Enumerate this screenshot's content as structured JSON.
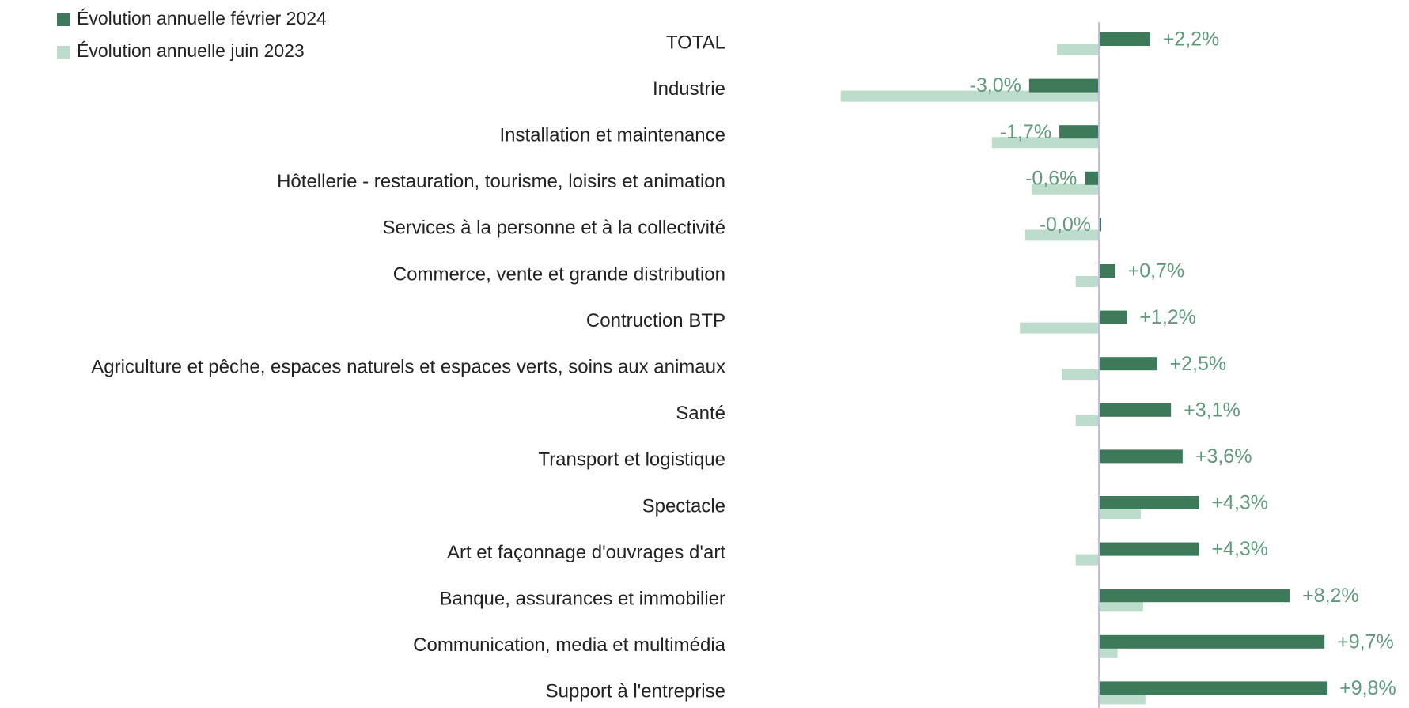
{
  "chart_data": {
    "type": "hbar",
    "categories": [
      "TOTAL",
      "Industrie",
      "Installation et maintenance",
      "Hôtellerie - restauration, tourisme, loisirs et animation",
      "Services à la personne et à la collectivité",
      "Commerce, vente et grande distribution",
      "Contruction BTP",
      "Agriculture et pêche, espaces naturels et espaces verts, soins aux animaux",
      "Santé",
      "Transport et logistique",
      "Spectacle",
      "Art  et façonnage d'ouvrages d'art",
      "Banque, assurances et immobilier",
      "Communication, media et multimédia",
      "Support à l'entreprise"
    ],
    "series": [
      {
        "name": "Évolution annuelle février 2024",
        "color": "#3d7a5a",
        "values": [
          2.2,
          -3.0,
          -1.7,
          -0.6,
          -0.0,
          0.7,
          1.2,
          2.5,
          3.1,
          3.6,
          4.3,
          4.3,
          8.2,
          9.7,
          9.8
        ],
        "value_labels": [
          "+2,2%",
          "-3,0%",
          "-1,7%",
          "-0,6%",
          "-0,0%",
          "+0,7%",
          "+1,2%",
          "+2,5%",
          "+3,1%",
          "+3,6%",
          "+4,3%",
          "+4,3%",
          "+8,2%",
          "+9,7%",
          "+9,8%"
        ]
      },
      {
        "name": "Évolution annuelle juin 2023",
        "color": "#bddccb",
        "values": [
          -1.8,
          -11.1,
          -4.6,
          -2.9,
          -3.2,
          -1.0,
          -3.4,
          -1.6,
          -1.0,
          0,
          1.8,
          -1.0,
          1.9,
          0.8,
          2.0
        ]
      }
    ],
    "xlim": [
      -11.5,
      10
    ],
    "label_color": "#5f9a7a",
    "zero_line_color": "#c8b8e8"
  }
}
